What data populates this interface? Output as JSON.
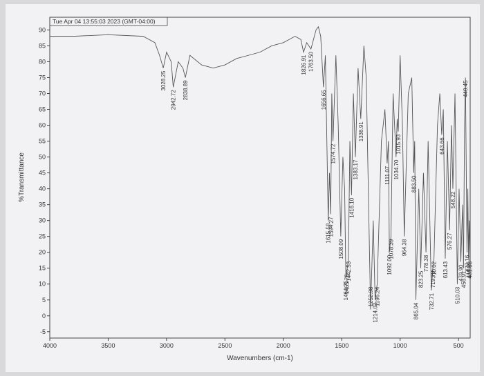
{
  "chart_data": {
    "type": "line",
    "title": "Tue Apr 04 13:55:03 2023 (GMT-04:00)",
    "x_label": "Wavenumbers (cm-1)",
    "y_label": "%Transmittance",
    "xlim": [
      4000,
      400
    ],
    "ylim": [
      -7,
      94
    ],
    "xticks": [
      4000,
      3500,
      3000,
      2500,
      2000,
      1500,
      1000,
      500
    ],
    "yticks": [
      -5,
      0,
      5,
      10,
      15,
      20,
      25,
      30,
      35,
      40,
      45,
      50,
      55,
      60,
      65,
      70,
      75,
      80,
      85,
      90
    ],
    "grid": false,
    "color": "#555555",
    "x": [
      4000,
      3800,
      3500,
      3200,
      3100,
      3060,
      3028.25,
      3000,
      2960,
      2942.72,
      2900,
      2860,
      2838.89,
      2800,
      2700,
      2600,
      2500,
      2400,
      2300,
      2200,
      2100,
      2000,
      1950,
      1900,
      1850,
      1826.91,
      1800,
      1763.5,
      1720,
      1700,
      1680,
      1656.65,
      1640,
      1615.58,
      1605,
      1594.27,
      1585,
      1574.72,
      1550,
      1530,
      1508.09,
      1490,
      1475,
      1464.75,
      1455.75,
      1442.53,
      1430,
      1416.1,
      1400,
      1383.17,
      1360,
      1336.91,
      1310,
      1290,
      1252.98,
      1230,
      1214.03,
      1196.24,
      1160,
      1130,
      1111.07,
      1100,
      1092,
      1078.39,
      1060,
      1034.7,
      1025,
      1015.93,
      1000,
      980,
      964.38,
      930,
      900,
      883.5,
      875,
      865.04,
      840,
      823.25,
      800,
      778.38,
      760,
      732.71,
      719.79,
      710.02,
      680,
      660,
      643.66,
      630,
      613.43,
      595,
      576.27,
      560,
      548.22,
      530,
      510.03,
      495,
      479.9,
      465,
      456.91,
      448,
      440.45,
      432,
      427.16,
      420,
      414.06,
      408,
      401.68
    ],
    "y": [
      88,
      88,
      88.5,
      88,
      86,
      82,
      78,
      83,
      80,
      72,
      80,
      78,
      75,
      82,
      79,
      78,
      79,
      81,
      82,
      83,
      85,
      86,
      87,
      88,
      87,
      83,
      86,
      84,
      90,
      91,
      88,
      72,
      82,
      30,
      45,
      32,
      70,
      55,
      82,
      60,
      25,
      50,
      40,
      12,
      14,
      18,
      55,
      38,
      70,
      50,
      78,
      62,
      85,
      75,
      2,
      30,
      5,
      10,
      55,
      65,
      48,
      55,
      20,
      25,
      70,
      50,
      62,
      58,
      82,
      60,
      25,
      70,
      75,
      45,
      55,
      5,
      40,
      15,
      45,
      20,
      55,
      8,
      15,
      18,
      60,
      70,
      57,
      65,
      18,
      55,
      27,
      60,
      40,
      70,
      10,
      40,
      17,
      35,
      15,
      60,
      75,
      40,
      20,
      40,
      18,
      30,
      18
    ],
    "peak_labels": [
      3028.25,
      2942.72,
      2838.89,
      1826.91,
      {
        "value": 1763.5,
        "label": "1763.50"
      },
      1656.65,
      1615.58,
      1594.27,
      1574.72,
      1508.09,
      1464.75,
      1455.75,
      1442.53,
      {
        "value": 1416.1,
        "label": "1416.10"
      },
      1383.17,
      1336.91,
      1252.98,
      1214.03,
      1196.24,
      1111.07,
      {
        "value": 1092,
        "label": "1092.00"
      },
      1078.39,
      {
        "value": 1034.7,
        "label": "1034.70"
      },
      1015.93,
      964.38,
      {
        "value": 883.5,
        "label": "883.50"
      },
      865.04,
      823.25,
      778.38,
      732.71,
      719.79,
      710.02,
      643.66,
      613.43,
      576.27,
      548.22,
      510.03,
      {
        "value": 479.9,
        "label": "479.90"
      },
      456.91,
      440.45,
      427.16,
      414.06,
      401.68
    ]
  }
}
